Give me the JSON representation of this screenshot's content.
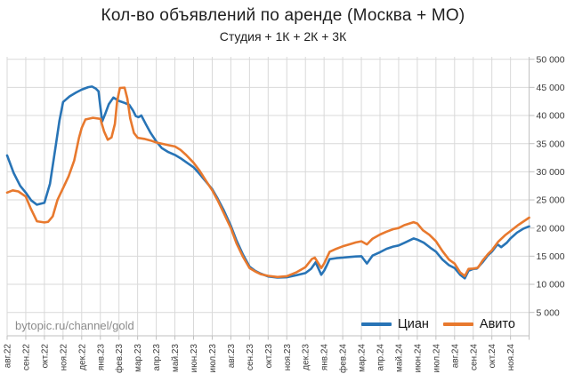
{
  "page": {
    "watermark": "bytopic.ru/channel/gold"
  },
  "chart_data": {
    "type": "line",
    "title": "Кол-во объявлений по аренде (Москва + МО)",
    "subtitle": "Студия + 1К + 2К + 3К",
    "xlabel": "",
    "ylabel": "",
    "ylim": [
      5000,
      50000
    ],
    "y_tick_step": 5000,
    "y_tick_labels": [
      "50 000",
      "45 000",
      "40 000",
      "35 000",
      "30 000",
      "25 000",
      "20 000",
      "15 000",
      "10 000",
      "5 000"
    ],
    "x_labels": [
      "авг.22",
      "сен.22",
      "окт.22",
      "ноя.22",
      "дек.22",
      "янв.23",
      "фев.23",
      "мар.23",
      "апр.23",
      "май.23",
      "июн.23",
      "июл.23",
      "авг.23",
      "сен.23",
      "окт.23",
      "ноя.23",
      "дек.23",
      "янв.24",
      "фев.24",
      "мар.24",
      "апр.24",
      "май.24",
      "июн.24",
      "июл.24",
      "авг.24",
      "сен.24",
      "окт.24",
      "ноя.24"
    ],
    "x_label_rotation": -90,
    "grid": true,
    "legend_position": "bottom-right",
    "axis_color": "#bfbfbf",
    "grid_color": "#d9d9d9",
    "tick_label_color": "#3a3a3a",
    "series": [
      {
        "name": "Циан",
        "color": "#2874B6",
        "points": [
          [
            0,
            32900
          ],
          [
            0.35,
            29800
          ],
          [
            0.7,
            27500
          ],
          [
            1,
            26300
          ],
          [
            1.3,
            24900
          ],
          [
            1.6,
            24150
          ],
          [
            2,
            24500
          ],
          [
            2.3,
            27900
          ],
          [
            2.6,
            34500
          ],
          [
            2.8,
            39000
          ],
          [
            3,
            42400
          ],
          [
            3.35,
            43400
          ],
          [
            3.7,
            44100
          ],
          [
            4,
            44600
          ],
          [
            4.35,
            45050
          ],
          [
            4.55,
            45150
          ],
          [
            4.75,
            44800
          ],
          [
            4.9,
            44300
          ],
          [
            5,
            41500
          ],
          [
            5.1,
            38950
          ],
          [
            5.25,
            40200
          ],
          [
            5.45,
            42000
          ],
          [
            5.7,
            43200
          ],
          [
            5.85,
            42900
          ],
          [
            6,
            42600
          ],
          [
            6.3,
            42250
          ],
          [
            6.55,
            41900
          ],
          [
            6.75,
            40900
          ],
          [
            6.9,
            39900
          ],
          [
            7.05,
            39700
          ],
          [
            7.2,
            40000
          ],
          [
            7.45,
            38400
          ],
          [
            7.7,
            36900
          ],
          [
            8,
            35400
          ],
          [
            8.3,
            34200
          ],
          [
            8.65,
            33500
          ],
          [
            9,
            33000
          ],
          [
            9.35,
            32300
          ],
          [
            9.7,
            31500
          ],
          [
            10,
            30800
          ],
          [
            10.3,
            29700
          ],
          [
            10.65,
            28300
          ],
          [
            11,
            26900
          ],
          [
            11.3,
            25200
          ],
          [
            11.6,
            23300
          ],
          [
            12,
            20400
          ],
          [
            12.3,
            17800
          ],
          [
            12.65,
            15300
          ],
          [
            13,
            13150
          ],
          [
            13.3,
            12400
          ],
          [
            13.6,
            11900
          ],
          [
            14,
            11400
          ],
          [
            14.5,
            11200
          ],
          [
            15,
            11250
          ],
          [
            15.5,
            11600
          ],
          [
            16,
            12000
          ],
          [
            16.3,
            12750
          ],
          [
            16.55,
            13900
          ],
          [
            16.85,
            11700
          ],
          [
            17,
            12400
          ],
          [
            17.15,
            13400
          ],
          [
            17.3,
            14480
          ],
          [
            17.65,
            14650
          ],
          [
            18,
            14740
          ],
          [
            18.35,
            14850
          ],
          [
            18.7,
            14950
          ],
          [
            19,
            15000
          ],
          [
            19.3,
            13700
          ],
          [
            19.6,
            15100
          ],
          [
            20,
            15700
          ],
          [
            20.35,
            16300
          ],
          [
            20.7,
            16700
          ],
          [
            21,
            16900
          ],
          [
            21.35,
            17450
          ],
          [
            21.8,
            18150
          ],
          [
            22,
            17950
          ],
          [
            22.35,
            17400
          ],
          [
            22.7,
            16500
          ],
          [
            23,
            15800
          ],
          [
            23.35,
            14400
          ],
          [
            23.7,
            13400
          ],
          [
            24,
            12890
          ],
          [
            24.3,
            11700
          ],
          [
            24.55,
            11060
          ],
          [
            24.75,
            12400
          ],
          [
            25,
            12740
          ],
          [
            25.2,
            12800
          ],
          [
            25.5,
            13900
          ],
          [
            25.8,
            15200
          ],
          [
            26,
            15800
          ],
          [
            26.3,
            17100
          ],
          [
            26.5,
            16600
          ],
          [
            26.8,
            17400
          ],
          [
            27,
            18150
          ],
          [
            27.35,
            19200
          ],
          [
            27.7,
            19900
          ],
          [
            28,
            20300
          ]
        ]
      },
      {
        "name": "Авито",
        "color": "#E8792E",
        "points": [
          [
            0,
            26300
          ],
          [
            0.3,
            26700
          ],
          [
            0.6,
            26500
          ],
          [
            1,
            25600
          ],
          [
            1.25,
            23600
          ],
          [
            1.6,
            21200
          ],
          [
            2,
            21000
          ],
          [
            2.2,
            21100
          ],
          [
            2.45,
            22100
          ],
          [
            2.7,
            25000
          ],
          [
            3,
            27100
          ],
          [
            3.3,
            29200
          ],
          [
            3.6,
            32000
          ],
          [
            3.85,
            36000
          ],
          [
            4,
            37800
          ],
          [
            4.2,
            39300
          ],
          [
            4.6,
            39600
          ],
          [
            5,
            39400
          ],
          [
            5.2,
            37200
          ],
          [
            5.4,
            35700
          ],
          [
            5.6,
            36100
          ],
          [
            5.78,
            38500
          ],
          [
            5.9,
            42500
          ],
          [
            6.05,
            44900
          ],
          [
            6.3,
            44950
          ],
          [
            6.45,
            43000
          ],
          [
            6.6,
            39500
          ],
          [
            6.8,
            36900
          ],
          [
            7,
            36050
          ],
          [
            7.35,
            35850
          ],
          [
            7.7,
            35550
          ],
          [
            8,
            35200
          ],
          [
            8.35,
            34950
          ],
          [
            8.7,
            34700
          ],
          [
            9,
            34500
          ],
          [
            9.3,
            33900
          ],
          [
            9.6,
            33000
          ],
          [
            10,
            31600
          ],
          [
            10.3,
            30300
          ],
          [
            10.65,
            28500
          ],
          [
            11,
            26700
          ],
          [
            11.3,
            24900
          ],
          [
            11.6,
            22800
          ],
          [
            12,
            20000
          ],
          [
            12.3,
            17300
          ],
          [
            12.65,
            14900
          ],
          [
            13,
            12900
          ],
          [
            13.35,
            12200
          ],
          [
            13.6,
            11800
          ],
          [
            14,
            11500
          ],
          [
            14.5,
            11300
          ],
          [
            15,
            11450
          ],
          [
            15.5,
            12100
          ],
          [
            16,
            13050
          ],
          [
            16.35,
            14500
          ],
          [
            16.5,
            14740
          ],
          [
            16.85,
            12890
          ],
          [
            17,
            13680
          ],
          [
            17.3,
            15790
          ],
          [
            17.65,
            16300
          ],
          [
            18,
            16740
          ],
          [
            18.35,
            17100
          ],
          [
            18.7,
            17450
          ],
          [
            19,
            17650
          ],
          [
            19.3,
            17100
          ],
          [
            19.6,
            18100
          ],
          [
            20,
            18850
          ],
          [
            20.35,
            19350
          ],
          [
            20.7,
            19800
          ],
          [
            21,
            20000
          ],
          [
            21.3,
            20500
          ],
          [
            21.8,
            21050
          ],
          [
            22,
            20800
          ],
          [
            22.3,
            19600
          ],
          [
            22.65,
            18800
          ],
          [
            23,
            17650
          ],
          [
            23.35,
            15900
          ],
          [
            23.7,
            14400
          ],
          [
            24,
            13680
          ],
          [
            24.3,
            12100
          ],
          [
            24.55,
            11480
          ],
          [
            24.75,
            12740
          ],
          [
            25,
            12800
          ],
          [
            25.25,
            12950
          ],
          [
            25.5,
            14200
          ],
          [
            25.8,
            15400
          ],
          [
            26,
            16050
          ],
          [
            26.35,
            17600
          ],
          [
            26.7,
            18700
          ],
          [
            27,
            19470
          ],
          [
            27.4,
            20500
          ],
          [
            27.75,
            21300
          ],
          [
            28,
            21850
          ]
        ]
      }
    ]
  }
}
